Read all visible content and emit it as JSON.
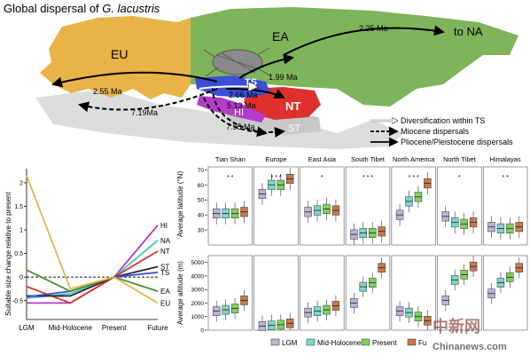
{
  "map": {
    "title_prefix": "Global dispersal of ",
    "title_species": "G. lacustris",
    "regions": {
      "EU": "EU",
      "EA": "EA",
      "TS": "TS",
      "NT": "NT",
      "HI": "HI",
      "ST": "ST",
      "NA": "to NA"
    },
    "region_colors": {
      "EU": "#e8b448",
      "EA": "#7fb45a",
      "TS": "#3a4fd6",
      "NT": "#e0302e",
      "HI": "#b43cc8",
      "ST": "#c8c8c8"
    },
    "ages": {
      "ea_to_na": "2.25 Ma",
      "eu_pliocene": "2.55 Ma",
      "eu_miocene": "7.19Ma",
      "ts_ea": "1.99 Ma",
      "ts_nt": "2.66 Ma",
      "ts_hi": "5.13 Ma",
      "hi_st": "7.95 Ma"
    },
    "legend": {
      "within_ts": "Diversification within TS",
      "miocene": "Miocene dispersals",
      "pliocene": "Pliocene/Pleistocene dispersals"
    }
  },
  "chart_data": [
    {
      "type": "line",
      "title": "",
      "ylabel": "Suitable size change relative to present",
      "categories": [
        "LGM",
        "Mid-Holocene",
        "Present",
        "Future"
      ],
      "ylim": [
        -0.9,
        2.3
      ],
      "yticks": [
        -0.5,
        0,
        0.5,
        1,
        1.5,
        2
      ],
      "reference_line": 0,
      "series": [
        {
          "name": "HI",
          "color": "#b43cc8",
          "values": [
            -0.55,
            -0.55,
            0,
            1.1
          ]
        },
        {
          "name": "NA",
          "color": "#4ac8c8",
          "values": [
            -0.45,
            -0.35,
            0,
            0.78
          ]
        },
        {
          "name": "NT",
          "color": "#e0302e",
          "values": [
            -0.2,
            -0.55,
            0,
            0.55
          ]
        },
        {
          "name": "ST",
          "color": "#2a2a2a",
          "values": [
            -0.4,
            -0.4,
            0,
            0.22
          ]
        },
        {
          "name": "TS",
          "color": "#3a4fd6",
          "values": [
            -0.42,
            -0.3,
            0,
            0.1
          ]
        },
        {
          "name": "EA",
          "color": "#4a8f2e",
          "values": [
            0.15,
            -0.3,
            0,
            -0.3
          ]
        },
        {
          "name": "EU",
          "color": "#e8b448",
          "values": [
            2.15,
            -0.25,
            0,
            -0.55
          ]
        }
      ]
    },
    {
      "type": "box",
      "ylabel": "Average latitude (°N)",
      "ylim": [
        20,
        72
      ],
      "yticks": [
        30,
        40,
        50,
        60,
        70
      ],
      "periods": [
        "LGM",
        "Mid-Holocene",
        "Present",
        "Future"
      ],
      "period_colors": [
        "#b8b4d8",
        "#7ed6c8",
        "#7ed25a",
        "#c8784a"
      ],
      "panels": [
        {
          "name": "Tian Shan",
          "stars": "* *",
          "medians": [
            41,
            41,
            41,
            42
          ]
        },
        {
          "name": "Europe",
          "stars": "* * *",
          "medians": [
            54,
            60,
            60,
            64
          ]
        },
        {
          "name": "East Asia",
          "stars": "*",
          "medians": [
            42,
            43,
            44,
            43
          ]
        },
        {
          "name": "South Tibet",
          "stars": "* * *",
          "medians": [
            27,
            28,
            28,
            29
          ]
        },
        {
          "name": "North America",
          "stars": "* * *",
          "medians": [
            40,
            49,
            52,
            61
          ]
        },
        {
          "name": "North Tibet",
          "stars": "*",
          "medians": [
            39,
            35,
            34,
            35
          ]
        },
        {
          "name": "Himalayas",
          "stars": "* *",
          "medians": [
            32,
            31,
            31,
            32
          ]
        }
      ]
    },
    {
      "type": "box",
      "ylabel": "Average altitude (m)",
      "ylim": [
        0,
        5500
      ],
      "yticks": [
        0,
        1000,
        2000,
        3000,
        4000,
        5000
      ],
      "periods": [
        "LGM",
        "Mid-Holocene",
        "Present",
        "Future"
      ],
      "period_colors": [
        "#b8b4d8",
        "#7ed6c8",
        "#7ed25a",
        "#c8784a"
      ],
      "panels": [
        {
          "name": "Tian Shan",
          "medians": [
            1400,
            1500,
            1600,
            2200
          ]
        },
        {
          "name": "Europe",
          "medians": [
            300,
            350,
            400,
            500
          ]
        },
        {
          "name": "East Asia",
          "medians": [
            1300,
            1400,
            1500,
            1800
          ]
        },
        {
          "name": "South Tibet",
          "medians": [
            2000,
            3200,
            3500,
            4600
          ]
        },
        {
          "name": "North America",
          "medians": [
            1400,
            1300,
            1000,
            700
          ]
        },
        {
          "name": "North Tibet",
          "medians": [
            2200,
            3700,
            4100,
            4700
          ]
        },
        {
          "name": "Himalayas",
          "medians": [
            2700,
            3500,
            3900,
            4600
          ]
        }
      ]
    }
  ],
  "legend": [
    "LGM",
    "Mid-Holocene",
    "Present",
    "Fu"
  ],
  "watermark": {
    "line1": "中新网",
    "line2": "Chinanews.com"
  }
}
